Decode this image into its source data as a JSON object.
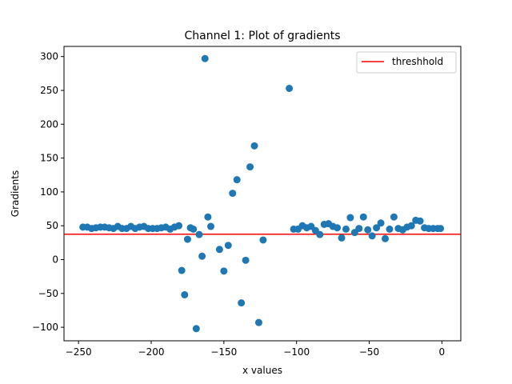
{
  "chart_data": {
    "type": "scatter",
    "title": "Channel 1: Plot of gradients",
    "xlabel": "x values",
    "ylabel": "Gradients",
    "xlim": [
      -260,
      13
    ],
    "ylim": [
      -120,
      315
    ],
    "xticks": [
      -250,
      -200,
      -150,
      -100,
      -50,
      0
    ],
    "yticks": [
      -100,
      -50,
      0,
      50,
      100,
      150,
      200,
      250,
      300
    ],
    "grid": false,
    "legend_position": "top-right",
    "series": [
      {
        "marker_color": "#1f77b4",
        "x": [
          -247,
          -244,
          -241,
          -238,
          -235,
          -232,
          -229,
          -226,
          -223,
          -220,
          -217,
          -214,
          -211,
          -208,
          -205,
          -202,
          -199,
          -196,
          -193,
          -190,
          -187,
          -184,
          -181,
          -179,
          -177,
          -175,
          -173,
          -171,
          -169,
          -167,
          -165,
          -163,
          -161,
          -159,
          -153,
          -150,
          -147,
          -144,
          -141,
          -138,
          -135,
          -132,
          -129,
          -126,
          -123,
          -105,
          -102,
          -99,
          -96,
          -93,
          -90,
          -87,
          -84,
          -81,
          -78,
          -75,
          -72,
          -69,
          -66,
          -63,
          -60,
          -57,
          -54,
          -51,
          -48,
          -45,
          -42,
          -39,
          -36,
          -33,
          -30,
          -27,
          -24,
          -21,
          -18,
          -15,
          -12,
          -9,
          -6,
          -3,
          -1
        ],
        "y": [
          48,
          48,
          46,
          47,
          48,
          48,
          47,
          46,
          49,
          46,
          46,
          49,
          46,
          48,
          49,
          46,
          46,
          46,
          47,
          48,
          45,
          48,
          50,
          -16,
          -52,
          30,
          47,
          45,
          -102,
          37,
          5,
          297,
          63,
          49,
          15,
          -17,
          21,
          98,
          118,
          -64,
          -1,
          137,
          168,
          -93,
          29,
          253,
          45,
          45,
          50,
          47,
          49,
          43,
          37,
          52,
          53,
          49,
          47,
          32,
          45,
          62,
          40,
          46,
          63,
          44,
          35,
          47,
          54,
          31,
          45,
          63,
          46,
          44,
          48,
          50,
          58,
          57,
          47,
          46,
          46,
          46,
          46
        ]
      }
    ],
    "reference_lines": [
      {
        "name": "threshhold",
        "orientation": "horizontal",
        "y": 37.5,
        "color": "#ff0000"
      }
    ]
  }
}
